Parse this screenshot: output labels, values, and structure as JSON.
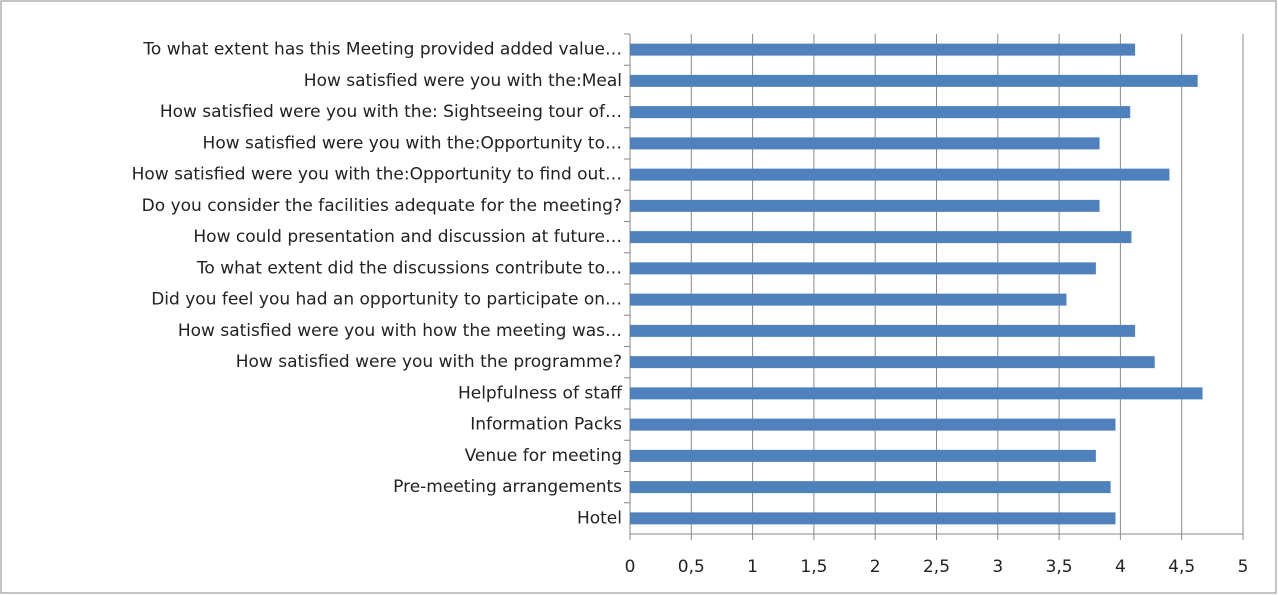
{
  "chart_data": {
    "type": "bar",
    "orientation": "horizontal",
    "categories": [
      "To what extent has this Meeting provided added value…",
      "How satisfied were you with the:Meal",
      "How satisfied were you with the: Sightseeing tour of…",
      "How satisfied were you with the:Opportunity to…",
      "How satisfied were you with the:Opportunity to find out…",
      "Do you consider the facilities adequate for the meeting?",
      "How could presentation and discussion at future…",
      "To what extent did the discussions contribute to…",
      "Did you feel you had an opportunity to participate on…",
      "How satisfied were you with how the meeting was…",
      "How satisfied were you with the programme?",
      "Helpfulness of staff",
      "Information Packs",
      "Venue for meeting",
      "Pre-meeting arrangements",
      "Hotel"
    ],
    "values": [
      4.12,
      4.63,
      4.08,
      3.83,
      4.4,
      3.83,
      4.09,
      3.8,
      3.56,
      4.12,
      4.28,
      4.67,
      3.96,
      3.8,
      3.92,
      3.96
    ],
    "color": "#4f81bd",
    "xlim": [
      0,
      5
    ],
    "xticks": [
      0,
      {
        "value": 0.5,
        "label": "0,5"
      },
      1,
      {
        "value": 1.5,
        "label": "1,5"
      },
      2,
      {
        "value": 2.5,
        "label": "2,5"
      },
      3,
      {
        "value": 3.5,
        "label": "3,5"
      },
      4,
      {
        "value": 4.5,
        "label": "4,5"
      },
      5
    ],
    "grid": true
  }
}
